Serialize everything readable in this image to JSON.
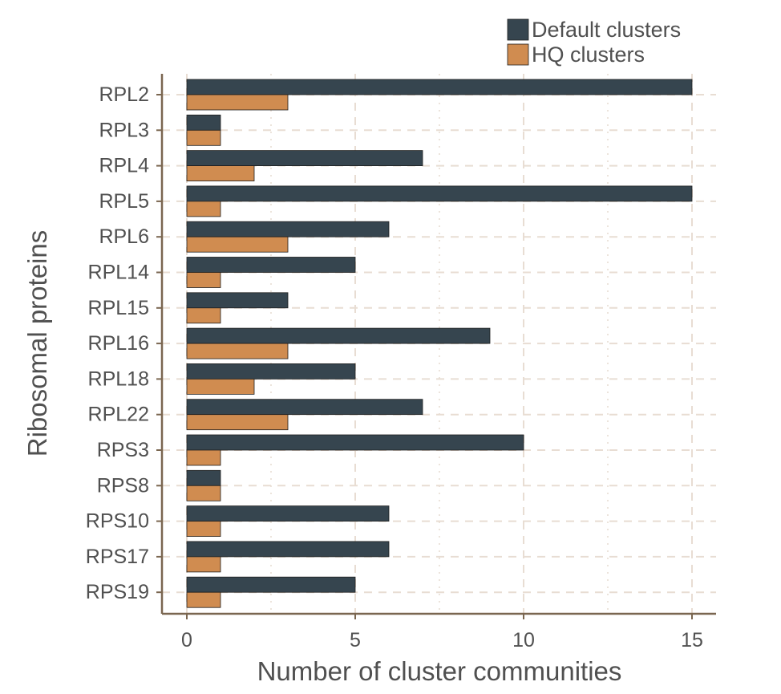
{
  "chart_data": {
    "type": "bar",
    "orientation": "horizontal",
    "title": "",
    "xlabel": "Number of cluster communities",
    "ylabel": "Ribosomal proteins",
    "categories": [
      "RPL2",
      "RPL3",
      "RPL4",
      "RPL5",
      "RPL6",
      "RPL14",
      "RPL15",
      "RPL16",
      "RPL18",
      "RPL22",
      "RPS3",
      "RPS8",
      "RPS10",
      "RPS17",
      "RPS19"
    ],
    "series": [
      {
        "name": "Default clusters",
        "color": "#36454f",
        "values": [
          15,
          1,
          7,
          15,
          6,
          5,
          3,
          9,
          5,
          7,
          10,
          1,
          6,
          6,
          5
        ]
      },
      {
        "name": "HQ clusters",
        "color": "#d08c50",
        "values": [
          3,
          1,
          2,
          1,
          3,
          1,
          1,
          3,
          2,
          3,
          1,
          1,
          1,
          1,
          1
        ]
      }
    ],
    "xlim": [
      0,
      15
    ],
    "xticks": [
      0,
      5,
      10,
      15
    ],
    "xtick_labels": [
      "0",
      "5",
      "10",
      "15"
    ],
    "grid": true,
    "legend_position": "top-right",
    "colors": {
      "axis": "#7a6650",
      "grid": "#e8ddd3",
      "text": "#505050"
    }
  }
}
